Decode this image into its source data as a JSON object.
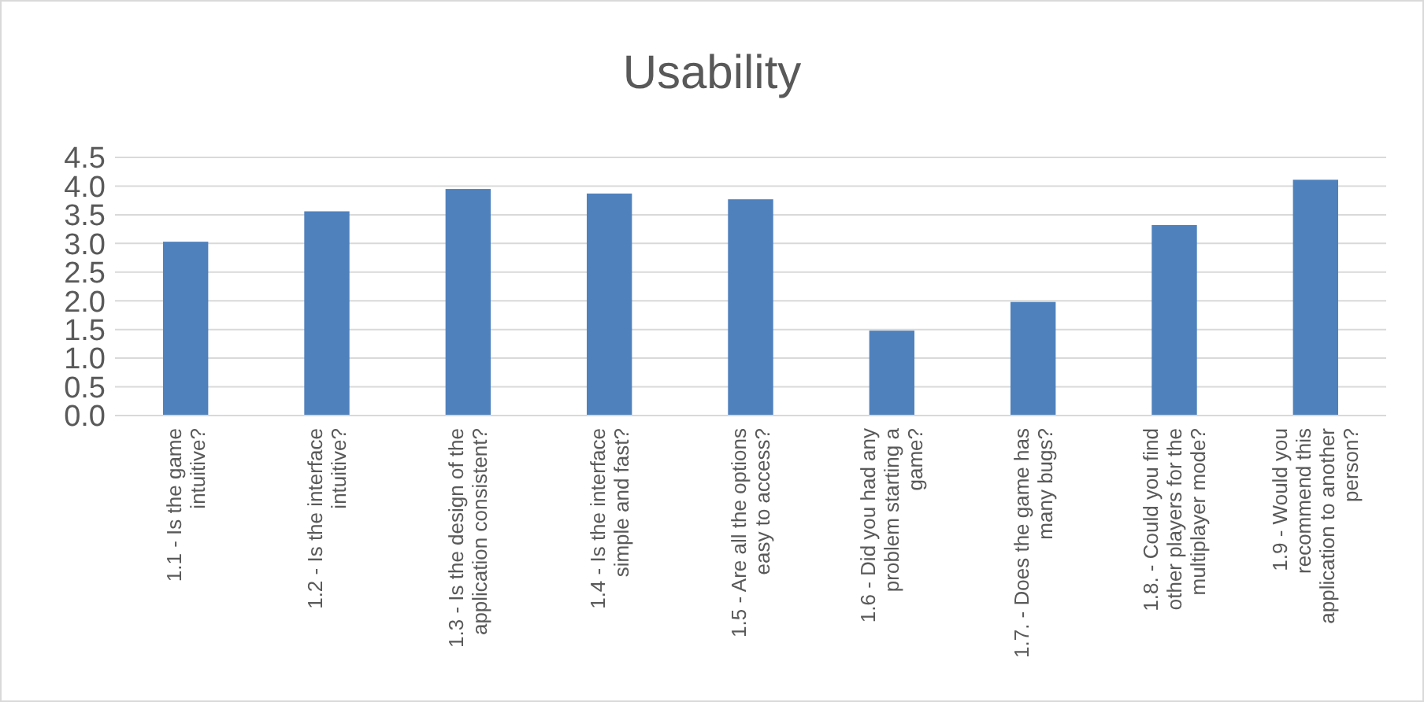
{
  "chart_data": {
    "type": "bar",
    "title": "Usability",
    "categories": [
      "1.1 - Is the game\nintuitive?",
      "1.2 - Is the interface\nintuitive?",
      "1.3 - Is the design of the\napplication consistent?",
      "1.4 - Is the interface\nsimple and fast?",
      "1.5 - Are all the options\neasy to access?",
      "1.6 - Did you had any\nproblem starting a\ngame?",
      "1.7. - Does the game has\nmany bugs?",
      "1.8. - Could you find\nother players for the\nmultiplayer mode?",
      "1.9 - Would you\nrecommend this\napplication to another\nperson?"
    ],
    "values": [
      3.03,
      3.56,
      3.95,
      3.87,
      3.77,
      1.48,
      1.98,
      3.32,
      4.11
    ],
    "color": "#4f81bd",
    "ylim": [
      0,
      4.5
    ],
    "yticks": [
      {
        "value": 0,
        "label": "0.0"
      },
      {
        "value": 0.5,
        "label": "0.5"
      },
      {
        "value": 1,
        "label": "1.0"
      },
      {
        "value": 1.5,
        "label": "1.5"
      },
      {
        "value": 2,
        "label": "2.0"
      },
      {
        "value": 2.5,
        "label": "2.5"
      },
      {
        "value": 3,
        "label": "3.0"
      },
      {
        "value": 3.5,
        "label": "3.5"
      },
      {
        "value": 4,
        "label": "4.0"
      },
      {
        "value": 4.5,
        "label": "4.5"
      }
    ],
    "grid": true
  }
}
